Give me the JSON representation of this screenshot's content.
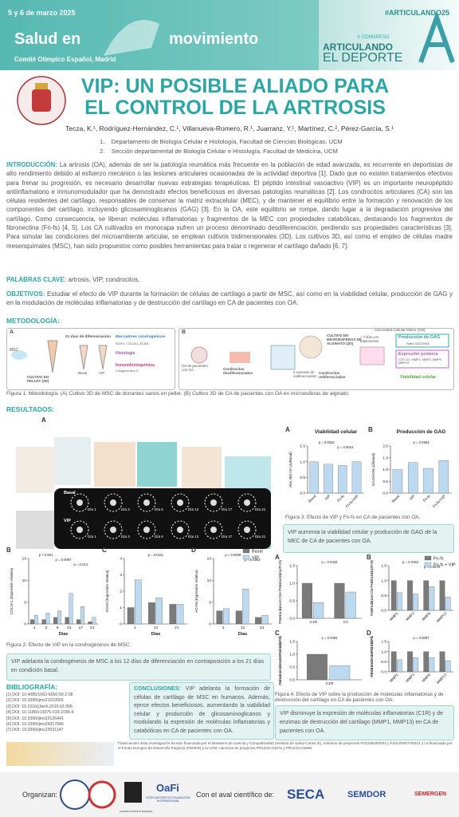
{
  "header": {
    "date": "5 y 6 de marzo 2025",
    "hashtag": "#ARTICULANDO25",
    "event_title_1": "Salud en",
    "event_title_2": "movimiento",
    "venue": "Comité Olímpico Español, Madrid",
    "congress_edition": "V CONGRESO",
    "congress_name_1": "ARTICULANDO",
    "congress_name_2": "EL DEPORTE"
  },
  "title": "VIP: UN POSIBLE ALIADO PARA EL CONTROL DE LA ARTROSIS",
  "authors": "Tecza, K.¹, Rodríguez-Hernández, C.¹, Villanueva-Romero, R.¹, Juarranz, Y.¹, Martínez, C.², Pérez-García, S.¹",
  "affiliations": [
    "1.    Departamento de Biología Celular e Histología, Facultad de Ciencias Biológicas, UCM",
    "2.    Sección departamental de Biología Celular e Histología, Facultad de Medicina, UCM"
  ],
  "introduction": {
    "heading": "INTRODUCCIÓN:",
    "text": "La artrosis (OA), además de ser la patología reumática más frecuente en la población de edad avanzada, es recurrente en deportistas de alto rendimiento debido al esfuerzo mecánico o las lesiones articulares ocasionadas de la actividad deportiva [1]. Dado que no existen tratamientos efectivos para frenar su progresión, es necesario desarrollar nuevas estrategias terapéuticas. El péptido intestinal vasoactivo (VIP) es un importante neuropéptido antiinflamatorio e inmunomodulador que ha demostrado efectos beneficiosos en diversas patologías reumáticas [2]. Los condrocitos articulares (CA) son las células residentes del cartílago, responsables de conservar la matriz extracelular (MEC), y de mantener el equilibrio entre la formación y renovación de los componentes del cartílago, incluyendo glicosaminoglicanos (GAG) [3]. En la OA, este equilibrio se rompe, dando lugar a la degradación progresiva del cartílago. Como consecuencia, se liberan moléculas inflamatorias y fragmentos de la MEC con propiedades catabólicas, destacando los fragmentos de fibronectina (Fn-fs) [4, 5]. Los CA cultivados en monocapa sufren un proceso denominado desdiferenciación, perdiendo sus propiedades características [3]. Para simular las condiciones del microambiente articular, se emplean cultivos tridimensionales (3D). Los cultivos 3D, así como el empleo de células madre mesenquimales (MSC), han sido propuestos como posibles herramientas para tratar o regenerar el cartílago dañado [6, 7]."
  },
  "keywords": {
    "heading": "PALABRAS CLAVE:",
    "text": "artrosis, VIP, condrocitos."
  },
  "objectives": {
    "heading": "OBJETIVOS:",
    "text": "Estudiar el efecto de VIP durante la formación de células de cartílago a partir de MSC, así como en la viabilidad celular, producción de GAG y en la modulación de moléculas inflamatorias y de destrucción del cartílago en CA de pacientes con OA."
  },
  "methodology": {
    "heading": "METODOLOGÍA:",
    "panel_a": {
      "label": "A",
      "msc": "MSC",
      "pellet": "CULTIVO EN PELLET (3D)",
      "days": "21 días de diferenciación",
      "basal": "Basal",
      "vip": "VIP",
      "markers": "Marcadores condrogénicos",
      "markers_list": "SOX9, COL2A1, ACAN",
      "histology": "Histología",
      "ihc": "Inmunohistoquímica",
      "collagen": "Colágeno tipo II"
    },
    "panel_b": {
      "label": "B",
      "patients": "CA de pacientes con OA",
      "dedifferentiated": "Condrocitos desdiferenciados",
      "alginate": "CULTIVO EN MICROESFERAS DE ALGINATO (3D)",
      "weeks": "2 semanas de rediferenciación",
      "redifferentiated": "Condrocitos rediferenciados",
      "treatments": "+ 7 días con tratamientos",
      "matrix": "Associated-Cellular Matrix (CM)",
      "gag": "Producción de GAG",
      "gag_ratio": "Ratio GAG/DNA",
      "protein": "Expresión proteica",
      "protein_list": "C1R, C3, MMP1, MMP3, MMP9, MMP13",
      "viability": "Viabilidad celular"
    },
    "caption": "Figura 1. Metodología. (A) Cultivo 3D de MSC de donantes sanos en pellet. (B) Cultivo 3D de CA de pacientes con OA en microesferas de alginato."
  },
  "results": {
    "heading": "RESULTADOS:",
    "figure2": {
      "label": "A",
      "rows": [
        "Basal",
        "VIP"
      ],
      "days": [
        "Día 1",
        "Día 3",
        "Día 6",
        "Día 12",
        "Día 17",
        "Día 21"
      ],
      "caption": "Figura 2: Efecto de VIP en la condrogénesis de MSC.",
      "conclusion": "VIP adelanta la condrogénesis de MSC a los 12 días de diferenciación en contraposición a los 21 días en condición basal."
    },
    "figure3": {
      "caption": "Figura 3: Efecto de VIP y Fn-fs en CA de pacientes con OA.",
      "conclusion": "VIP aumenta la viabilidad celular y producción de GAG de la MEC de CA de pacientes con OA."
    },
    "figure4": {
      "caption": "Figura 4: Efecto de VIP sobre la producción de moléculas inflamatorias y de destrucción del cartílago en CA de pacientes con OA.",
      "conclusion": "VIP disminuye la expresión de moléculas inflamatorias (C1R) y de enzimas de destrucción del cartílago (MMP1, MMP13) en CA de pacientes con OA."
    }
  },
  "chart_data": [
    {
      "type": "bar",
      "label": "B",
      "ylabel": "COL2A1 (Expresión relativa)",
      "xlabel": "Días",
      "categories": [
        "1",
        "3",
        "6",
        "12",
        "17",
        "21"
      ],
      "series": [
        {
          "name": "Basal",
          "color": "#7a7a7a",
          "values": [
            1,
            1,
            1.5,
            1.5,
            1,
            0.5
          ]
        },
        {
          "name": "VIP",
          "color": "#bcd9f0",
          "values": [
            2,
            2.5,
            3,
            7,
            4,
            1.5
          ]
        }
      ],
      "ylim": [
        0,
        15
      ],
      "yticks": [
        0,
        5,
        10,
        15
      ],
      "annotations": [
        "p < 0.001",
        "p = 0.0087",
        "p = 0.014"
      ]
    },
    {
      "type": "bar",
      "label": "C",
      "ylabel": "SOX9 (Expresión relativa)",
      "xlabel": "Días",
      "categories": [
        "1",
        "12",
        "21"
      ],
      "series": [
        {
          "name": "Basal",
          "color": "#7a7a7a",
          "values": [
            1,
            1.3,
            1.2
          ]
        },
        {
          "name": "VIP",
          "color": "#bcd9f0",
          "values": [
            2.7,
            1.6,
            1.2
          ]
        }
      ],
      "ylim": [
        0,
        4
      ],
      "yticks": [
        0,
        1,
        2,
        3,
        4
      ],
      "annotations": [
        "p = 0.0111"
      ]
    },
    {
      "type": "bar",
      "label": "D",
      "ylabel": "ACAN (Expresión relativa)",
      "xlabel": "Días",
      "categories": [
        "1",
        "12",
        "21"
      ],
      "series": [
        {
          "name": "Basal",
          "color": "#7a7a7a",
          "values": [
            3,
            3,
            1.5
          ]
        },
        {
          "name": "VIP",
          "color": "#bcd9f0",
          "values": [
            3.5,
            8,
            2
          ]
        }
      ],
      "ylim": [
        0,
        15
      ],
      "yticks": [
        0,
        5,
        10,
        15
      ],
      "annotations": [
        "p = 0.0499",
        "p = 0.0063"
      ],
      "legend": true
    },
    {
      "type": "bar",
      "label": "A",
      "title": "Viabilidad celular",
      "ylabel": "Abs 450 nm (Δ/Basal)",
      "categories": [
        "Basal",
        "VIP",
        "Fn-fs",
        "Fn-fs+VIP"
      ],
      "series": [
        {
          "name": "Viabilidad",
          "color": "#bcd9f0",
          "values": [
            1,
            0.92,
            0.88,
            1
          ]
        }
      ],
      "ylim": [
        0,
        1.5
      ],
      "yticks": [
        {
          "value": 0,
          "label": "0.0"
        },
        {
          "value": 0.5,
          "label": "0.5"
        },
        {
          "value": 1,
          "label": "1.0"
        },
        {
          "value": 1.5,
          "label": "1.5"
        }
      ],
      "annotations": [
        "p = 0.0022",
        "p = 0.0024"
      ]
    },
    {
      "type": "bar",
      "label": "B",
      "title": "Producción de GAG",
      "ylabel": "GAG/ADN (Δ/Basal)",
      "categories": [
        "Basal",
        "VIP",
        "Fn-fs",
        "Fn-fs+VIP"
      ],
      "series": [
        {
          "name": "GAG",
          "color": "#bcd9f0",
          "values": [
            1,
            1.3,
            1.05,
            1.38
          ]
        }
      ],
      "ylim": [
        0,
        2
      ],
      "yticks": [
        {
          "value": 0,
          "label": "0.0"
        },
        {
          "value": 0.5,
          "label": "0.5"
        },
        {
          "value": 1,
          "label": "1.0"
        },
        {
          "value": 1.5,
          "label": "1.5"
        },
        {
          "value": 2,
          "label": "2.0"
        }
      ],
      "annotations": [
        "p = 0.0354"
      ]
    },
    {
      "type": "bar",
      "label": "A",
      "ylabel": "Proteína diana en CM / Proteína total (Δ/Fn-fs)",
      "categories": [
        "C1R",
        "C3"
      ],
      "series": [
        {
          "name": "Fn-fs",
          "color": "#7a7a7a",
          "values": [
            1,
            1
          ]
        },
        {
          "name": "Fn-fs + VIP",
          "color": "#bcd9f0",
          "values": [
            0.45,
            0.75
          ]
        }
      ],
      "ylim": [
        0,
        1.5
      ],
      "yticks": [
        {
          "value": 0,
          "label": "0.0"
        },
        {
          "value": 0.5,
          "label": "0.5"
        },
        {
          "value": 1,
          "label": "1.0"
        },
        {
          "value": 1.5,
          "label": "1.5"
        }
      ],
      "annotations": [
        "p = 0.0432"
      ]
    },
    {
      "type": "bar",
      "label": "B",
      "ylabel": "Proteína diana en CM / Proteína total (Δ/Fn-fs)",
      "categories": [
        "MMP1",
        "MMP3",
        "MMP9",
        "MMP13"
      ],
      "series": [
        {
          "name": "Fn-fs",
          "color": "#7a7a7a",
          "values": [
            1,
            1,
            1,
            1
          ]
        },
        {
          "name": "Fn-fs + VIP",
          "color": "#bcd9f0",
          "values": [
            0.6,
            0.55,
            0.8,
            0.45
          ]
        }
      ],
      "ylim": [
        0,
        1.5
      ],
      "yticks": [
        {
          "value": 0,
          "label": "0.0"
        },
        {
          "value": 0.5,
          "label": "0.5"
        },
        {
          "value": 1,
          "label": "1.0"
        },
        {
          "value": 1.5,
          "label": "1.5"
        }
      ],
      "annotations": [
        "p = 0.0162",
        "p = 0.0479"
      ],
      "legend": true
    },
    {
      "type": "bar",
      "label": "C",
      "ylabel": "Proteína diana en sobrenadante / Proteína total (Δ/Fn-fs)",
      "categories": [
        "C1R"
      ],
      "series": [
        {
          "name": "Fn-fs",
          "color": "#7a7a7a",
          "values": [
            1
          ]
        },
        {
          "name": "Fn-fs + VIP",
          "color": "#bcd9f0",
          "values": [
            0.55
          ]
        }
      ],
      "ylim": [
        0,
        1.5
      ],
      "yticks": [
        {
          "value": 0,
          "label": "0.0"
        },
        {
          "value": 0.5,
          "label": "0.5"
        },
        {
          "value": 1,
          "label": "1.0"
        },
        {
          "value": 1.5,
          "label": "1.5"
        }
      ],
      "annotations": [
        "p = 0.0394"
      ]
    },
    {
      "type": "bar",
      "label": "D",
      "ylabel": "Proteína diana en sobrenadante / Proteína total (Δ/Fn-fs)",
      "categories": [
        "MMP1",
        "MMP3",
        "MMP9",
        "MMP13"
      ],
      "series": [
        {
          "name": "Fn-fs",
          "color": "#7a7a7a",
          "values": [
            1,
            1,
            1,
            1
          ]
        },
        {
          "name": "Fn-fs + VIP",
          "color": "#bcd9f0",
          "values": [
            0.6,
            0.7,
            0.7,
            0.55
          ]
        }
      ],
      "ylim": [
        0,
        1.5
      ],
      "yticks": [
        {
          "value": 0,
          "label": "0.0"
        },
        {
          "value": 0.5,
          "label": "0.5"
        },
        {
          "value": 1,
          "label": "1.0"
        },
        {
          "value": 1.5,
          "label": "1.5"
        }
      ],
      "annotations": [
        "p = 0.0087"
      ]
    }
  ],
  "bibliography": {
    "heading": "BIBLIOGRAFÍA:",
    "items": [
      "[1] DOI: 10.4085/1062-6050-50.2.08",
      "[2] DOI: 10.3390/ijms21010065",
      "[3] DOI: 10.1016/j.berh.2019.02.006",
      "[4] DOI: 10.1186/s13075-016-1036-4",
      "[5] DOI: 10.3390/ijms22126441",
      "[6] DOI: 10.3390/ijms24317096",
      "[7] DOI: 10.3390/ijms23031147"
    ]
  },
  "conclusions": {
    "heading": "CONCLUSIONES:",
    "text": "VIP adelanta la formación de células de cartílago de MSC en humanos. Además, ejerce efectos beneficiosos, aumentando la viabilidad celular y producción de glicosaminoglicanos y modulando la expresión de moléculas inflamatorias y catabólicas en CA de pacientes con OA."
  },
  "funding": "Financiación: Esta investigación ha sido financiada por el Ministerio de Ciencia y Competitividad (Instituto de Salud Carlos III), números de proyectos PI21/00020/004 y FIS24/00074/0014 y co-financiada por el Fondo Europeo de Desarrollo Regional (FEDER) y la UCM, números de proyectos PR12/24-31572 y PR12/24-31568",
  "footer": {
    "organized": "Organizan:",
    "endorsed": "Con el aval científico de:",
    "oafi": "OaFi",
    "oafi_full": "OSTEOARTHRITIS FOUNDATION INTERNATIONAL",
    "coe": "COMITÉ OLÍMPICO ESPAÑOL",
    "seca": "SECA",
    "semdor": "SEMDOR",
    "semergen": "SEMERGEN"
  }
}
